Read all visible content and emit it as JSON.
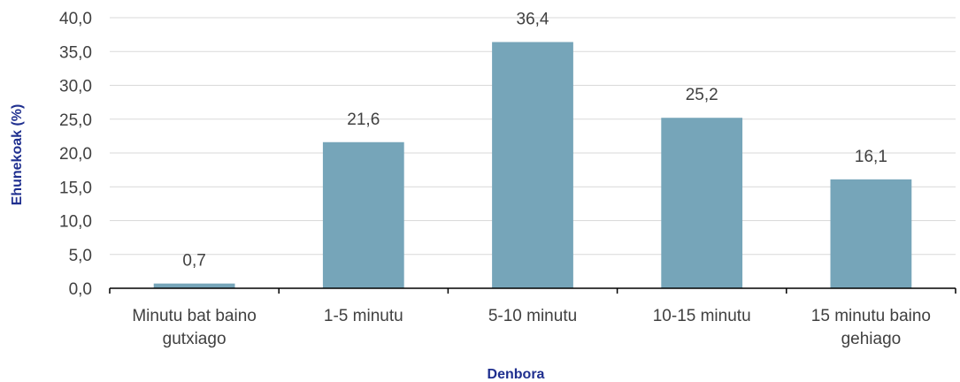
{
  "chart_data": {
    "type": "bar",
    "title": "",
    "xlabel": "Denbora",
    "ylabel": "Ehunekoak (%)",
    "categories": [
      [
        "Minutu bat baino",
        "gutxiago"
      ],
      [
        "1-5 minutu"
      ],
      [
        "5-10 minutu"
      ],
      [
        "10-15 minutu"
      ],
      [
        "15 minutu baino",
        "gehiago"
      ]
    ],
    "values": [
      0.7,
      21.6,
      36.4,
      25.2,
      16.1
    ],
    "value_labels": [
      "0,7",
      "21,6",
      "36,4",
      "25,2",
      "16,1"
    ],
    "ylim": [
      0,
      40
    ],
    "yticks": [
      "0,0",
      "5,0",
      "10,0",
      "15,0",
      "20,0",
      "25,0",
      "30,0",
      "35,0",
      "40,0"
    ],
    "grid": true,
    "legend": "none",
    "colors": {
      "bar": "#76A5B9",
      "grid": "#D9D9D9",
      "axis": "#000000",
      "axis_title": "#1F2F8F",
      "text": "#404040"
    }
  }
}
